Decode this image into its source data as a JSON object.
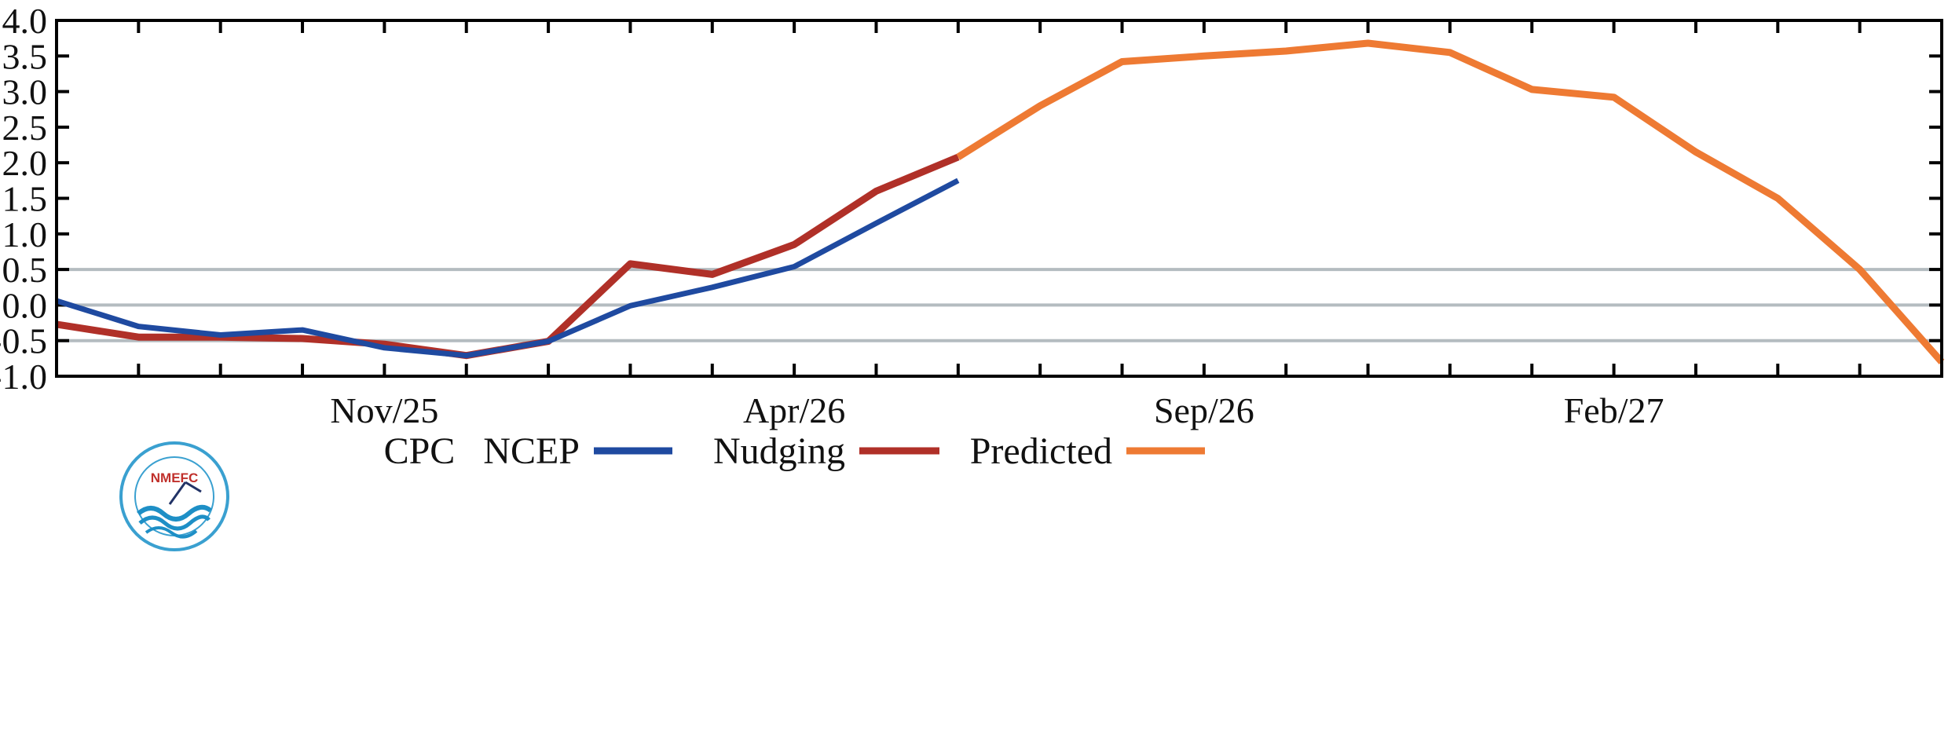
{
  "chart_data": {
    "type": "line",
    "xlabel": "",
    "ylabel": "",
    "ylim": [
      -1.0,
      4.0
    ],
    "y_ticks": [
      "-1.0",
      "-0.5",
      "0.0",
      "0.5",
      "1.0",
      "1.5",
      "2.0",
      "2.5",
      "3.0",
      "3.5",
      "4.0"
    ],
    "x_tick_labels": [
      {
        "month_index": 4,
        "label": "Nov/25"
      },
      {
        "month_index": 9,
        "label": "Apr/26"
      },
      {
        "month_index": 14,
        "label": "Sep/26"
      },
      {
        "month_index": 19,
        "label": "Feb/27"
      }
    ],
    "xlim": [
      0,
      23
    ],
    "reference_lines": [
      0.5,
      0.0,
      -0.5
    ],
    "series": [
      {
        "name": "Nudging",
        "color": "#b03028",
        "x": [
          0,
          1,
          2,
          3,
          4,
          5,
          6,
          7,
          8,
          9,
          10,
          11
        ],
        "values": [
          -0.27,
          -0.45,
          -0.45,
          -0.47,
          -0.55,
          -0.71,
          -0.51,
          0.58,
          0.43,
          0.85,
          1.6,
          2.08
        ]
      },
      {
        "name": "CPC NCEP",
        "color": "#1f4aa0",
        "x": [
          0,
          1,
          2,
          3,
          4,
          5,
          6,
          7,
          8,
          9,
          10,
          11
        ],
        "values": [
          0.06,
          -0.3,
          -0.42,
          -0.35,
          -0.6,
          -0.71,
          -0.51,
          -0.01,
          0.25,
          0.54,
          1.15,
          1.75
        ]
      },
      {
        "name": "Predicted",
        "color": "#ee7a33",
        "x": [
          11,
          12,
          13,
          14,
          15,
          16,
          17,
          18,
          19,
          20,
          21,
          22,
          23
        ],
        "values": [
          2.08,
          2.8,
          3.42,
          3.5,
          3.57,
          3.68,
          3.55,
          3.03,
          2.92,
          2.15,
          1.5,
          0.5,
          -0.8
        ]
      }
    ],
    "legend": {
      "placement": "bottom",
      "entries": [
        {
          "label": "CPC   NCEP",
          "color": "#1f4aa0"
        },
        {
          "label": "Nudging",
          "color": "#b03028"
        },
        {
          "label": "Predicted",
          "color": "#ee7a33"
        }
      ]
    }
  },
  "logo": {
    "text": "NMEFC"
  }
}
